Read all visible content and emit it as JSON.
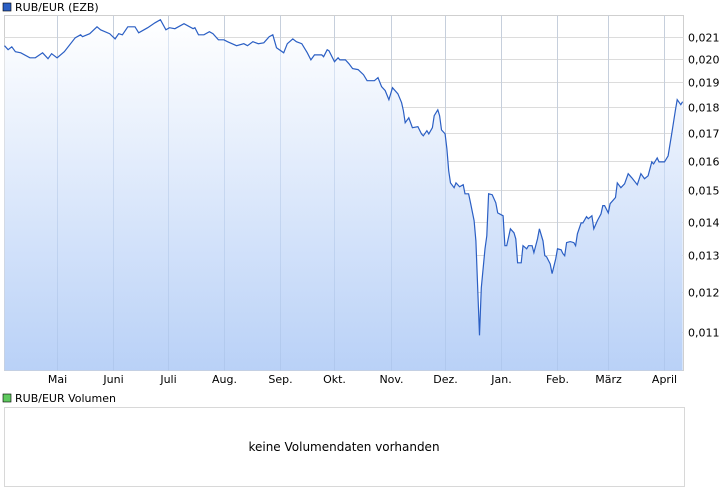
{
  "chart_data": {
    "type": "area",
    "title": "",
    "legend": "top-left",
    "grid": true,
    "y_scale": "log",
    "ylim": [
      0.0101,
      0.022
    ],
    "xlim": [
      "2014-04-02",
      "2015-04-11"
    ],
    "y_axis_side": "right",
    "series": [
      {
        "name": "RUB/EUR (EZB)",
        "color": "#2b5fc4",
        "fill_top": "#ffffff",
        "fill_bottom": "#b9d1f7",
        "dates": [
          "2014-04-02",
          "2014-04-04",
          "2014-04-06",
          "2014-04-08",
          "2014-04-11",
          "2014-04-16",
          "2014-04-19",
          "2014-04-23",
          "2014-04-26",
          "2014-04-28",
          "2014-05-01",
          "2014-05-05",
          "2014-05-11",
          "2014-05-14",
          "2014-05-15",
          "2014-05-19",
          "2014-05-23",
          "2014-05-25",
          "2014-05-30",
          "2014-06-02",
          "2014-06-04",
          "2014-06-06",
          "2014-06-09",
          "2014-06-13",
          "2014-06-15",
          "2014-06-20",
          "2014-06-24",
          "2014-06-27",
          "2014-06-30",
          "2014-07-02",
          "2014-07-05",
          "2014-07-10",
          "2014-07-15",
          "2014-07-16",
          "2014-07-18",
          "2014-07-21",
          "2014-07-24",
          "2014-07-26",
          "2014-07-29",
          "2014-08-01",
          "2014-08-03",
          "2014-08-08",
          "2014-08-12",
          "2014-08-14",
          "2014-08-17",
          "2014-08-20",
          "2014-08-23",
          "2014-08-26",
          "2014-08-28",
          "2014-08-30",
          "2014-09-03",
          "2014-09-05",
          "2014-09-08",
          "2014-09-10",
          "2014-09-13",
          "2014-09-16",
          "2014-09-18",
          "2014-09-20",
          "2014-09-24",
          "2014-09-25",
          "2014-09-27",
          "2014-09-28",
          "2014-10-01",
          "2014-10-03",
          "2014-10-04",
          "2014-10-07",
          "2014-10-09",
          "2014-10-11",
          "2014-10-14",
          "2014-10-17",
          "2014-10-19",
          "2014-10-23",
          "2014-10-25",
          "2014-10-27",
          "2014-10-29",
          "2014-10-31",
          "2014-11-02",
          "2014-11-05",
          "2014-11-07",
          "2014-11-08",
          "2014-11-09",
          "2014-11-11",
          "2014-11-13",
          "2014-11-16",
          "2014-11-18",
          "2014-11-19",
          "2014-11-21",
          "2014-11-22",
          "2014-11-24",
          "2014-11-25",
          "2014-11-27",
          "2014-11-28",
          "2014-11-29",
          "2014-12-01",
          "2014-12-02",
          "2014-12-03",
          "2014-12-04",
          "2014-12-06",
          "2014-12-07",
          "2014-12-09",
          "2014-12-11",
          "2014-12-12",
          "2014-12-14",
          "2014-12-15",
          "2014-12-17",
          "2014-12-18",
          "2014-12-20",
          "2014-12-21",
          "2014-12-23",
          "2014-12-24",
          "2014-12-25",
          "2014-12-27",
          "2014-12-29",
          "2014-12-30",
          "2015-01-02",
          "2015-01-03",
          "2015-01-04",
          "2015-01-06",
          "2015-01-08",
          "2015-01-09",
          "2015-01-10",
          "2015-01-12",
          "2015-01-13",
          "2015-01-15",
          "2015-01-16",
          "2015-01-18",
          "2015-01-19",
          "2015-01-21",
          "2015-01-22",
          "2015-01-24",
          "2015-01-25",
          "2015-01-26",
          "2015-01-28",
          "2015-01-29",
          "2015-01-31",
          "2015-02-01",
          "2015-02-03",
          "2015-02-04",
          "2015-02-05",
          "2015-02-06",
          "2015-02-08",
          "2015-02-10",
          "2015-02-11",
          "2015-02-12",
          "2015-02-14",
          "2015-02-15",
          "2015-02-17",
          "2015-02-18",
          "2015-02-20",
          "2015-02-21",
          "2015-02-23",
          "2015-02-25",
          "2015-02-26",
          "2015-02-27",
          "2015-03-01",
          "2015-03-02",
          "2015-03-05",
          "2015-03-06",
          "2015-03-08",
          "2015-03-10",
          "2015-03-12",
          "2015-03-14",
          "2015-03-17",
          "2015-03-19",
          "2015-03-21",
          "2015-03-23",
          "2015-03-25",
          "2015-03-26",
          "2015-03-28",
          "2015-03-29",
          "2015-04-01",
          "2015-04-03",
          "2015-04-05",
          "2015-04-07",
          "2015-04-08",
          "2015-04-10",
          "2015-04-11"
        ],
        "values": [
          0.02059,
          0.02041,
          0.02054,
          0.02032,
          0.02027,
          0.02005,
          0.02005,
          0.02027,
          0.02001,
          0.02023,
          0.02005,
          0.02032,
          0.02095,
          0.02109,
          0.021,
          0.02114,
          0.02146,
          0.02132,
          0.02114,
          0.0209,
          0.02114,
          0.02109,
          0.02146,
          0.02146,
          0.02118,
          0.02142,
          0.02165,
          0.0218,
          0.02132,
          0.02142,
          0.02137,
          0.02161,
          0.02137,
          0.02142,
          0.02109,
          0.02109,
          0.02123,
          0.02114,
          0.02086,
          0.02086,
          0.02077,
          0.02059,
          0.02068,
          0.02059,
          0.02077,
          0.02068,
          0.02072,
          0.021,
          0.02109,
          0.0205,
          0.02027,
          0.02068,
          0.0209,
          0.02077,
          0.02068,
          0.02027,
          0.01996,
          0.02018,
          0.02018,
          0.0201,
          0.02041,
          0.02036,
          0.01988,
          0.02005,
          0.01996,
          0.01996,
          0.01979,
          0.01958,
          0.01954,
          0.01932,
          0.01907,
          0.01907,
          0.0192,
          0.01882,
          0.01866,
          0.01829,
          0.01878,
          0.01853,
          0.01817,
          0.01785,
          0.01739,
          0.01758,
          0.0172,
          0.01724,
          0.01697,
          0.0169,
          0.01709,
          0.01697,
          0.0172,
          0.01766,
          0.01789,
          0.01766,
          0.01712,
          0.01697,
          0.01642,
          0.01565,
          0.01524,
          0.01508,
          0.01524,
          0.01511,
          0.01518,
          0.01488,
          0.01488,
          0.01459,
          0.01403,
          0.01342,
          0.01091,
          0.01211,
          0.01319,
          0.01357,
          0.01488,
          0.01485,
          0.01459,
          0.01427,
          0.01418,
          0.01328,
          0.01328,
          0.01378,
          0.01366,
          0.01348,
          0.01279,
          0.01279,
          0.01328,
          0.01319,
          0.01328,
          0.01328,
          0.01308,
          0.01348,
          0.01378,
          0.01342,
          0.01299,
          0.01296,
          0.01276,
          0.01249,
          0.0129,
          0.01319,
          0.01316,
          0.01305,
          0.01299,
          0.01337,
          0.0134,
          0.01337,
          0.01328,
          0.01363,
          0.01396,
          0.01396,
          0.01415,
          0.01409,
          0.01418,
          0.01378,
          0.01403,
          0.01424,
          0.0145,
          0.0145,
          0.01427,
          0.01456,
          0.01476,
          0.01524,
          0.01508,
          0.01521,
          0.01555,
          0.01541,
          0.01518,
          0.01555,
          0.01538,
          0.01548,
          0.01596,
          0.01589,
          0.0161,
          0.01596,
          0.01596,
          0.01617,
          0.01697,
          0.01785,
          0.01829,
          0.01809,
          0.01821
        ]
      }
    ],
    "y_ticks": [
      {
        "value": 0.021,
        "label": "0,021"
      },
      {
        "value": 0.02,
        "label": "0,020"
      },
      {
        "value": 0.019,
        "label": "0,019"
      },
      {
        "value": 0.018,
        "label": "0,018"
      },
      {
        "value": 0.017,
        "label": "0,017"
      },
      {
        "value": 0.016,
        "label": "0,016"
      },
      {
        "value": 0.015,
        "label": "0,015"
      },
      {
        "value": 0.014,
        "label": "0,014"
      },
      {
        "value": 0.013,
        "label": "0,013"
      },
      {
        "value": 0.012,
        "label": "0,012"
      },
      {
        "value": 0.011,
        "label": "0,011"
      }
    ],
    "x_ticks": [
      {
        "date": "2014-05-01",
        "label": "Mai"
      },
      {
        "date": "2014-06-01",
        "label": "Juni"
      },
      {
        "date": "2014-07-01",
        "label": "Juli"
      },
      {
        "date": "2014-08-01",
        "label": "Aug."
      },
      {
        "date": "2014-09-01",
        "label": "Sep."
      },
      {
        "date": "2014-10-01",
        "label": "Okt."
      },
      {
        "date": "2014-11-01",
        "label": "Nov."
      },
      {
        "date": "2014-12-01",
        "label": "Dez."
      },
      {
        "date": "2015-01-01",
        "label": "Jan."
      },
      {
        "date": "2015-02-01",
        "label": "Feb."
      },
      {
        "date": "2015-03-01",
        "label": "März"
      },
      {
        "date": "2015-04-01",
        "label": "April"
      }
    ]
  },
  "volume_panel": {
    "legend_label": "RUB/EUR Volumen",
    "legend_color": "#5ec95e",
    "message": "keine Volumendaten vorhanden"
  }
}
